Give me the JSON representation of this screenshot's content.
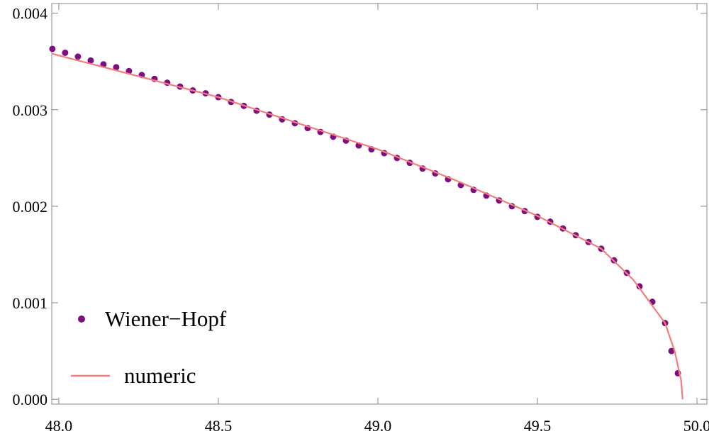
{
  "chart_data": {
    "type": "scatter",
    "xlim": [
      47.978,
      50.031
    ],
    "ylim": [
      -5e-05,
      0.0041
    ],
    "xticks": [
      {
        "value": 48,
        "label": "48.0"
      },
      48.5,
      {
        "value": 49,
        "label": "49.0"
      },
      49.5,
      {
        "value": 50,
        "label": "50.0"
      }
    ],
    "yticks": [
      {
        "value": 0,
        "label": "0.000"
      },
      0.001,
      0.002,
      0.003,
      0.004
    ],
    "legend": "bottom left",
    "series": [
      {
        "name": "Wiener−Hopf",
        "color": "#7d0f7f",
        "mode": "markers",
        "x": [
          47.98,
          48.02,
          48.06,
          48.1,
          48.14,
          48.18,
          48.22,
          48.26,
          48.3,
          48.34,
          48.38,
          48.42,
          48.46,
          48.5,
          48.54,
          48.58,
          48.62,
          48.66,
          48.7,
          48.74,
          48.78,
          48.82,
          48.86,
          48.9,
          48.94,
          48.98,
          49.02,
          49.06,
          49.1,
          49.14,
          49.18,
          49.22,
          49.26,
          49.3,
          49.34,
          49.38,
          49.42,
          49.46,
          49.5,
          49.54,
          49.58,
          49.62,
          49.66,
          49.7,
          49.74,
          49.78,
          49.82,
          49.86,
          49.9,
          49.92,
          49.94
        ],
        "values": [
          0.00363,
          0.00359,
          0.00355,
          0.00351,
          0.00347,
          0.00344,
          0.0034,
          0.00336,
          0.00332,
          0.00328,
          0.00324,
          0.0032,
          0.00317,
          0.00313,
          0.00308,
          0.00304,
          0.00299,
          0.00295,
          0.0029,
          0.00286,
          0.00281,
          0.00277,
          0.00272,
          0.00268,
          0.00263,
          0.00259,
          0.00255,
          0.0025,
          0.00245,
          0.00239,
          0.00234,
          0.00228,
          0.00222,
          0.00217,
          0.00211,
          0.00206,
          0.002,
          0.00195,
          0.00189,
          0.00184,
          0.00177,
          0.0017,
          0.00163,
          0.00156,
          0.00144,
          0.00131,
          0.00117,
          0.00101,
          0.00079,
          0.0005,
          0.00027
        ]
      },
      {
        "name": "numeric",
        "color": "#f47c7c",
        "mode": "line",
        "x": [
          47.98,
          48.5,
          49.0,
          49.25,
          49.5,
          49.7,
          49.8,
          49.9,
          49.93,
          49.95,
          49.955
        ],
        "values": [
          0.00358,
          0.00313,
          0.00259,
          0.00226,
          0.0019,
          0.00156,
          0.00124,
          0.00079,
          0.0005,
          0.0002,
          0
        ]
      }
    ]
  }
}
